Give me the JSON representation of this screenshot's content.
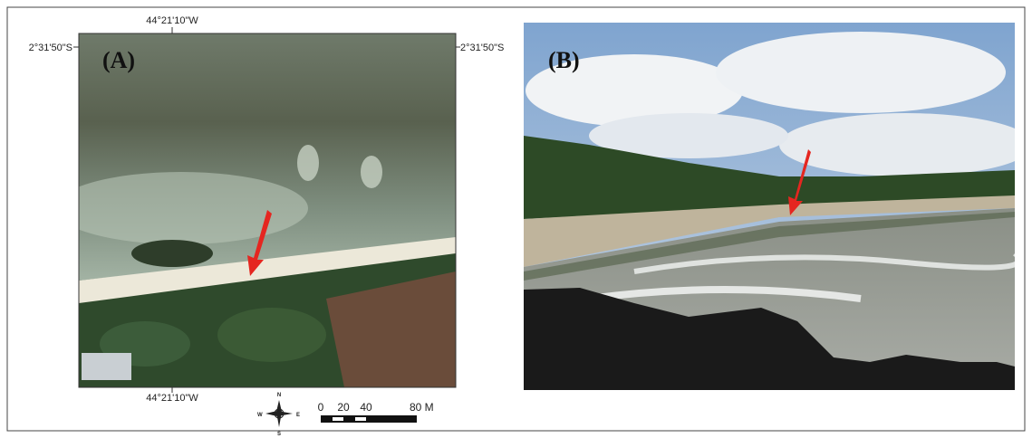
{
  "panel_a": {
    "label": "(A)",
    "top_coordinate": "44°21'10\"W",
    "bottom_coordinate": "44°21'10\"W",
    "left_coordinate": "2°31'50\"S",
    "right_coordinate": "2°31'50\"S"
  },
  "panel_b": {
    "label": "(B)"
  },
  "compass": {
    "north": "N",
    "south": "S",
    "east": "E",
    "west": "W"
  },
  "scale_bar": {
    "labels": [
      "0",
      "20",
      "40",
      "80 M"
    ]
  }
}
